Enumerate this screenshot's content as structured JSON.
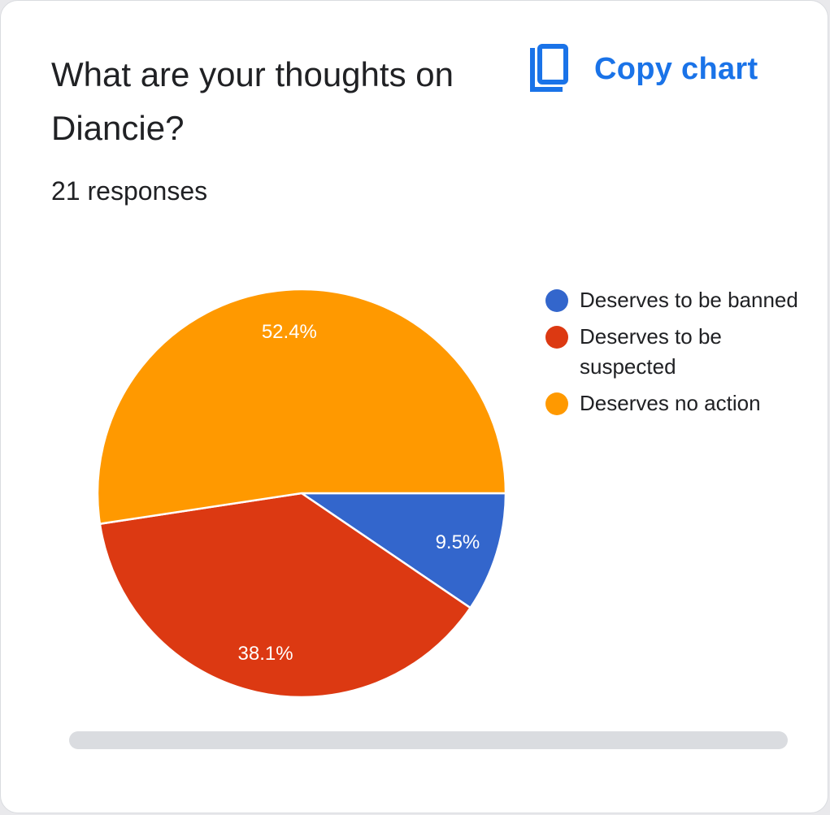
{
  "card": {
    "title": "What are your thoughts on Diancie?",
    "responses": "21 responses",
    "copy_label": "Copy chart",
    "copy_icon": "copy-icon"
  },
  "colors": {
    "accent": "#1a73e8",
    "banned": "#3366cc",
    "suspected": "#dc3912",
    "no_action": "#ff9900"
  },
  "chart_data": {
    "type": "pie",
    "title": "What are your thoughts on Diancie?",
    "legend_position": "right",
    "slices": [
      {
        "label": "Deserves to be banned",
        "value": 9.5,
        "display": "9.5%",
        "color": "#3366cc"
      },
      {
        "label": "Deserves to be suspected",
        "value": 38.1,
        "display": "38.1%",
        "color": "#dc3912"
      },
      {
        "label": "Deserves no action",
        "value": 52.4,
        "display": "52.4%",
        "color": "#ff9900"
      }
    ]
  }
}
